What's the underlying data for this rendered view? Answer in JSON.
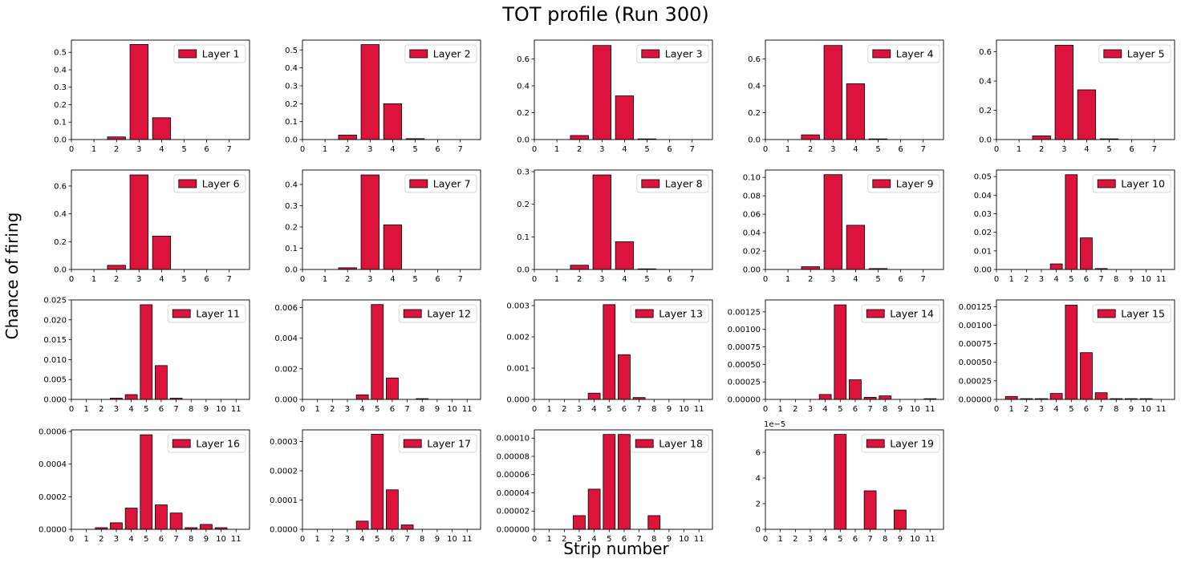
{
  "figure": {
    "title": "TOT profile (Run 300)",
    "xlabel": "Strip number",
    "ylabel": "Chance of firing",
    "bar_color": "#dc143c"
  },
  "chart_data": [
    {
      "type": "bar",
      "series": [
        {
          "name": "Layer 1",
          "values": [
            0,
            0,
            0.015,
            0.545,
            0.125,
            0,
            0,
            0
          ]
        }
      ],
      "categories": [
        "0",
        "1",
        "2",
        "3",
        "4",
        "5",
        "6",
        "7"
      ],
      "xlim": [
        0,
        7.9
      ],
      "ylim": [
        0,
        0.57
      ],
      "yticks": [
        "0.0",
        "0.1",
        "0.2",
        "0.3",
        "0.4",
        "0.5"
      ],
      "ytick_values": [
        0,
        0.1,
        0.2,
        0.3,
        0.4,
        0.5
      ],
      "legend": "top-right"
    },
    {
      "type": "bar",
      "series": [
        {
          "name": "Layer 2",
          "values": [
            0,
            0,
            0.025,
            0.53,
            0.2,
            0.005,
            0,
            0
          ]
        }
      ],
      "categories": [
        "0",
        "1",
        "2",
        "3",
        "4",
        "5",
        "6",
        "7"
      ],
      "xlim": [
        0,
        7.9
      ],
      "ylim": [
        0,
        0.555
      ],
      "yticks": [
        "0.0",
        "0.1",
        "0.2",
        "0.3",
        "0.4",
        "0.5"
      ],
      "ytick_values": [
        0,
        0.1,
        0.2,
        0.3,
        0.4,
        0.5
      ],
      "legend": "top-right"
    },
    {
      "type": "bar",
      "series": [
        {
          "name": "Layer 3",
          "values": [
            0,
            0,
            0.03,
            0.7,
            0.325,
            0.005,
            0,
            0
          ]
        }
      ],
      "categories": [
        "0",
        "1",
        "2",
        "3",
        "4",
        "5",
        "6",
        "7"
      ],
      "xlim": [
        0,
        7.9
      ],
      "ylim": [
        0,
        0.74
      ],
      "yticks": [
        "0.0",
        "0.2",
        "0.4",
        "0.6"
      ],
      "ytick_values": [
        0,
        0.2,
        0.4,
        0.6
      ],
      "legend": "top-right"
    },
    {
      "type": "bar",
      "series": [
        {
          "name": "Layer 4",
          "values": [
            0,
            0,
            0.035,
            0.7,
            0.415,
            0.005,
            0,
            0
          ]
        }
      ],
      "categories": [
        "0",
        "1",
        "2",
        "3",
        "4",
        "5",
        "6",
        "7"
      ],
      "xlim": [
        0,
        7.9
      ],
      "ylim": [
        0,
        0.74
      ],
      "yticks": [
        "0.0",
        "0.2",
        "0.4",
        "0.6"
      ],
      "ytick_values": [
        0,
        0.2,
        0.4,
        0.6
      ],
      "legend": "top-right"
    },
    {
      "type": "bar",
      "series": [
        {
          "name": "Layer 5",
          "values": [
            0,
            0,
            0.025,
            0.645,
            0.34,
            0.005,
            0,
            0
          ]
        }
      ],
      "categories": [
        "0",
        "1",
        "2",
        "3",
        "4",
        "5",
        "6",
        "7"
      ],
      "xlim": [
        0,
        7.9
      ],
      "ylim": [
        0,
        0.68
      ],
      "yticks": [
        "0.0",
        "0.2",
        "0.4",
        "0.6"
      ],
      "ytick_values": [
        0,
        0.2,
        0.4,
        0.6
      ],
      "legend": "top-right"
    },
    {
      "type": "bar",
      "series": [
        {
          "name": "Layer 6",
          "values": [
            0,
            0,
            0.03,
            0.68,
            0.24,
            0,
            0,
            0
          ]
        }
      ],
      "categories": [
        "0",
        "1",
        "2",
        "3",
        "4",
        "5",
        "6",
        "7"
      ],
      "xlim": [
        0,
        7.9
      ],
      "ylim": [
        0,
        0.715
      ],
      "yticks": [
        "0.0",
        "0.2",
        "0.4",
        "0.6"
      ],
      "ytick_values": [
        0,
        0.2,
        0.4,
        0.6
      ],
      "legend": "top-right"
    },
    {
      "type": "bar",
      "series": [
        {
          "name": "Layer 7",
          "values": [
            0,
            0,
            0.008,
            0.445,
            0.21,
            0,
            0,
            0
          ]
        }
      ],
      "categories": [
        "0",
        "1",
        "2",
        "3",
        "4",
        "5",
        "6",
        "7"
      ],
      "xlim": [
        0,
        7.9
      ],
      "ylim": [
        0,
        0.468
      ],
      "yticks": [
        "0.0",
        "0.1",
        "0.2",
        "0.3",
        "0.4"
      ],
      "ytick_values": [
        0,
        0.1,
        0.2,
        0.3,
        0.4
      ],
      "legend": "top-right"
    },
    {
      "type": "bar",
      "series": [
        {
          "name": "Layer 8",
          "values": [
            0,
            0,
            0.013,
            0.29,
            0.085,
            0.002,
            0,
            0
          ]
        }
      ],
      "categories": [
        "0",
        "1",
        "2",
        "3",
        "4",
        "5",
        "6",
        "7"
      ],
      "xlim": [
        0,
        7.9
      ],
      "ylim": [
        0,
        0.305
      ],
      "yticks": [
        "0.0",
        "0.1",
        "0.2",
        "0.3"
      ],
      "ytick_values": [
        0,
        0.1,
        0.2,
        0.3
      ],
      "legend": "top-right"
    },
    {
      "type": "bar",
      "series": [
        {
          "name": "Layer 9",
          "values": [
            0,
            0,
            0.003,
            0.103,
            0.048,
            0.001,
            0,
            0
          ]
        }
      ],
      "categories": [
        "0",
        "1",
        "2",
        "3",
        "4",
        "5",
        "6",
        "7"
      ],
      "xlim": [
        0,
        7.9
      ],
      "ylim": [
        0,
        0.108
      ],
      "yticks": [
        "0.00",
        "0.02",
        "0.04",
        "0.06",
        "0.08",
        "0.10"
      ],
      "ytick_values": [
        0,
        0.02,
        0.04,
        0.06,
        0.08,
        0.1
      ],
      "legend": "top-right"
    },
    {
      "type": "bar",
      "series": [
        {
          "name": "Layer 10",
          "values": [
            0,
            0,
            0,
            0,
            0.003,
            0.051,
            0.017,
            0.0005,
            0,
            0,
            0,
            0
          ]
        }
      ],
      "categories": [
        "0",
        "1",
        "2",
        "3",
        "4",
        "5",
        "6",
        "7",
        "8",
        "9",
        "10",
        "11"
      ],
      "xlim": [
        0,
        11.9
      ],
      "ylim": [
        0,
        0.0535
      ],
      "yticks": [
        "0.00",
        "0.01",
        "0.02",
        "0.03",
        "0.04",
        "0.05"
      ],
      "ytick_values": [
        0,
        0.01,
        0.02,
        0.03,
        0.04,
        0.05
      ],
      "legend": "top-right"
    },
    {
      "type": "bar",
      "series": [
        {
          "name": "Layer 11",
          "values": [
            0,
            0,
            0,
            0.0003,
            0.0012,
            0.0238,
            0.0085,
            0.0003,
            0,
            0,
            0,
            0
          ]
        }
      ],
      "categories": [
        "0",
        "1",
        "2",
        "3",
        "4",
        "5",
        "6",
        "7",
        "8",
        "9",
        "10",
        "11"
      ],
      "xlim": [
        0,
        11.9
      ],
      "ylim": [
        0,
        0.025
      ],
      "yticks": [
        "0.000",
        "0.005",
        "0.010",
        "0.015",
        "0.020",
        "0.025"
      ],
      "ytick_values": [
        0,
        0.005,
        0.01,
        0.015,
        0.02,
        0.025
      ],
      "legend": "top-right"
    },
    {
      "type": "bar",
      "series": [
        {
          "name": "Layer 12",
          "values": [
            0,
            0,
            0,
            0,
            0.0003,
            0.0062,
            0.0014,
            0,
            5e-05,
            0,
            0,
            0
          ]
        }
      ],
      "categories": [
        "0",
        "1",
        "2",
        "3",
        "4",
        "5",
        "6",
        "7",
        "8",
        "9",
        "10",
        "11"
      ],
      "xlim": [
        0,
        11.9
      ],
      "ylim": [
        0,
        0.0065
      ],
      "yticks": [
        "0.000",
        "0.002",
        "0.004",
        "0.006"
      ],
      "ytick_values": [
        0,
        0.002,
        0.004,
        0.006
      ],
      "legend": "top-right"
    },
    {
      "type": "bar",
      "series": [
        {
          "name": "Layer 13",
          "values": [
            0,
            0,
            0,
            0,
            0.0002,
            0.00303,
            0.00143,
            6e-05,
            0,
            0,
            0,
            0
          ]
        }
      ],
      "categories": [
        "0",
        "1",
        "2",
        "3",
        "4",
        "5",
        "6",
        "7",
        "8",
        "9",
        "10",
        "11"
      ],
      "xlim": [
        0,
        11.9
      ],
      "ylim": [
        0,
        0.00318
      ],
      "yticks": [
        "0.000",
        "0.001",
        "0.002",
        "0.003"
      ],
      "ytick_values": [
        0,
        0.001,
        0.002,
        0.003
      ],
      "legend": "top-right"
    },
    {
      "type": "bar",
      "series": [
        {
          "name": "Layer 14",
          "values": [
            0,
            0,
            0,
            0,
            7e-05,
            0.00135,
            0.00028,
            3e-05,
            5e-05,
            0,
            0,
            1e-05
          ]
        }
      ],
      "categories": [
        "0",
        "1",
        "2",
        "3",
        "4",
        "5",
        "6",
        "7",
        "8",
        "9",
        "10",
        "11"
      ],
      "xlim": [
        0,
        11.9
      ],
      "ylim": [
        0,
        0.00142
      ],
      "yticks": [
        "0.00000",
        "0.00025",
        "0.00050",
        "0.00075",
        "0.00100",
        "0.00125"
      ],
      "ytick_values": [
        0,
        0.00025,
        0.0005,
        0.00075,
        0.001,
        0.00125
      ],
      "legend": "top-right"
    },
    {
      "type": "bar",
      "series": [
        {
          "name": "Layer 15",
          "values": [
            0,
            4e-05,
            1e-05,
            1e-05,
            8e-05,
            0.00127,
            0.00063,
            9e-05,
            1e-05,
            1e-05,
            1e-05,
            0
          ]
        }
      ],
      "categories": [
        "0",
        "1",
        "2",
        "3",
        "4",
        "5",
        "6",
        "7",
        "8",
        "9",
        "10",
        "11"
      ],
      "xlim": [
        0,
        11.9
      ],
      "ylim": [
        0,
        0.00134
      ],
      "yticks": [
        "0.00000",
        "0.00025",
        "0.00050",
        "0.00075",
        "0.00100",
        "0.00125"
      ],
      "ytick_values": [
        0,
        0.00025,
        0.0005,
        0.00075,
        0.001,
        0.00125
      ],
      "legend": "top-right"
    },
    {
      "type": "bar",
      "series": [
        {
          "name": "Layer 16",
          "values": [
            0,
            0,
            1e-05,
            4e-05,
            0.00013,
            0.00058,
            0.00015,
            0.0001,
            1e-05,
            3e-05,
            1e-05,
            0
          ]
        }
      ],
      "categories": [
        "0",
        "1",
        "2",
        "3",
        "4",
        "5",
        "6",
        "7",
        "8",
        "9",
        "10",
        "11"
      ],
      "xlim": [
        0,
        11.9
      ],
      "ylim": [
        0,
        0.00061
      ],
      "yticks": [
        "0.0000",
        "0.0002",
        "0.0004",
        "0.0006"
      ],
      "ytick_values": [
        0,
        0.0002,
        0.0004,
        0.0006
      ],
      "legend": "top-right"
    },
    {
      "type": "bar",
      "series": [
        {
          "name": "Layer 17",
          "values": [
            0,
            0,
            0,
            0,
            2.8e-05,
            0.000325,
            0.000135,
            1.5e-05,
            0,
            0,
            0,
            0
          ]
        }
      ],
      "categories": [
        "0",
        "1",
        "2",
        "3",
        "4",
        "5",
        "6",
        "7",
        "8",
        "9",
        "10",
        "11"
      ],
      "xlim": [
        0,
        11.9
      ],
      "ylim": [
        0,
        0.00034
      ],
      "yticks": [
        "0.0000",
        "0.0001",
        "0.0002",
        "0.0003"
      ],
      "ytick_values": [
        0,
        0.0001,
        0.0002,
        0.0003
      ],
      "legend": "top-right"
    },
    {
      "type": "bar",
      "series": [
        {
          "name": "Layer 18",
          "values": [
            0,
            0,
            0,
            1.5e-05,
            4.4e-05,
            0.000104,
            0.000104,
            0,
            1.5e-05,
            0,
            0,
            0
          ]
        }
      ],
      "categories": [
        "0",
        "1",
        "2",
        "3",
        "4",
        "5",
        "6",
        "7",
        "8",
        "9",
        "10",
        "11"
      ],
      "xlim": [
        0,
        11.9
      ],
      "ylim": [
        0,
        0.000109
      ],
      "yticks": [
        "0.00000",
        "0.00002",
        "0.00004",
        "0.00006",
        "0.00008",
        "0.00010"
      ],
      "ytick_values": [
        0,
        2e-05,
        4e-05,
        6e-05,
        8e-05,
        0.0001
      ],
      "legend": "top-right"
    },
    {
      "type": "bar",
      "series": [
        {
          "name": "Layer 19",
          "values": [
            0,
            0,
            0,
            0,
            0,
            7.4,
            0,
            3.0,
            0,
            1.5,
            0,
            0
          ]
        }
      ],
      "categories": [
        "0",
        "1",
        "2",
        "3",
        "4",
        "5",
        "6",
        "7",
        "8",
        "9",
        "10",
        "11"
      ],
      "xlim": [
        0,
        11.9
      ],
      "ylim": [
        0,
        7.75
      ],
      "yticks": [
        "0",
        "2",
        "4",
        "6"
      ],
      "ytick_values": [
        0,
        2,
        4,
        6
      ],
      "offset_text": "1e−5",
      "legend": "top-right"
    }
  ]
}
